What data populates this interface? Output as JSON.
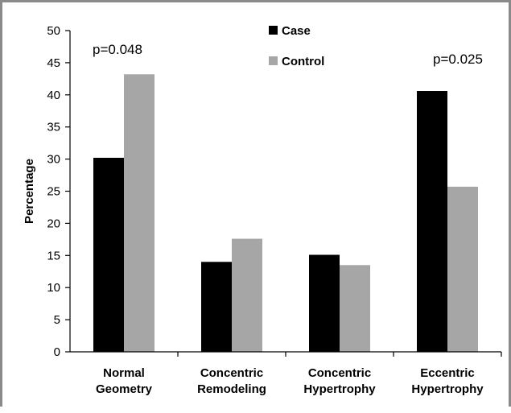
{
  "chart_data": {
    "type": "bar",
    "categories": [
      [
        "Normal",
        "Geometry"
      ],
      [
        "Concentric",
        "Remodeling"
      ],
      [
        "Concentric",
        "Hypertrophy"
      ],
      [
        "Eccentric",
        "Hypertrophy"
      ]
    ],
    "series": [
      {
        "name": "Case",
        "color": "#000000",
        "values": [
          30.2,
          14.0,
          15.1,
          40.6
        ]
      },
      {
        "name": "Control",
        "color": "#a6a6a6",
        "values": [
          43.2,
          17.6,
          13.5,
          25.7
        ]
      }
    ],
    "xlabel": "",
    "ylabel": "Percentage",
    "ylim": [
      0,
      50
    ],
    "yticks": [
      0,
      5,
      10,
      15,
      20,
      25,
      30,
      35,
      40,
      45,
      50
    ],
    "grid": false,
    "legend_position": "top-center",
    "annotations": [
      {
        "text": "p=0.048",
        "category_index": 0
      },
      {
        "text": "p=0.025",
        "category_index": 3
      }
    ]
  }
}
